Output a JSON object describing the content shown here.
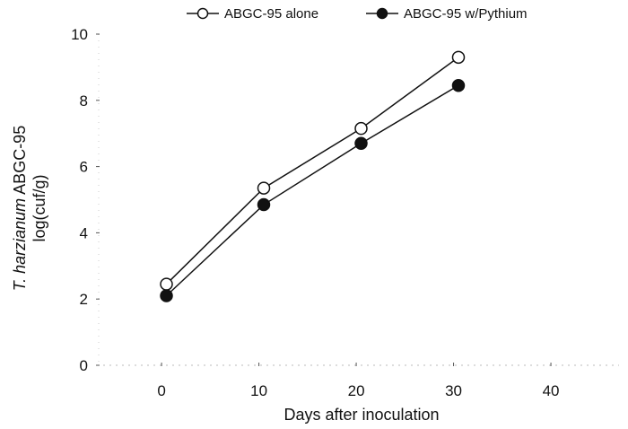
{
  "chart_data": {
    "type": "line",
    "xlabel": "Days after inoculation",
    "ylabel": {
      "italic": "T. harzianum",
      "rest": " ABGC-95",
      "line2": "log(cuf/g)"
    },
    "xlim": [
      -6,
      47
    ],
    "ylim": [
      0,
      10
    ],
    "xticks": [
      0,
      10,
      20,
      30,
      40
    ],
    "yticks": [
      0,
      2,
      4,
      6,
      8,
      10
    ],
    "grid": false,
    "legend": "top",
    "series": [
      {
        "name": "ABGC-95 alone",
        "marker": "open-circle",
        "x": [
          0.5,
          10.5,
          20.5,
          30.5
        ],
        "y": [
          2.45,
          5.35,
          7.15,
          9.3
        ]
      },
      {
        "name": "ABGC-95 w/Pythium",
        "marker": "filled-circle",
        "x": [
          0.5,
          10.5,
          20.5,
          30.5
        ],
        "y": [
          2.1,
          4.85,
          6.7,
          8.45
        ]
      }
    ]
  }
}
